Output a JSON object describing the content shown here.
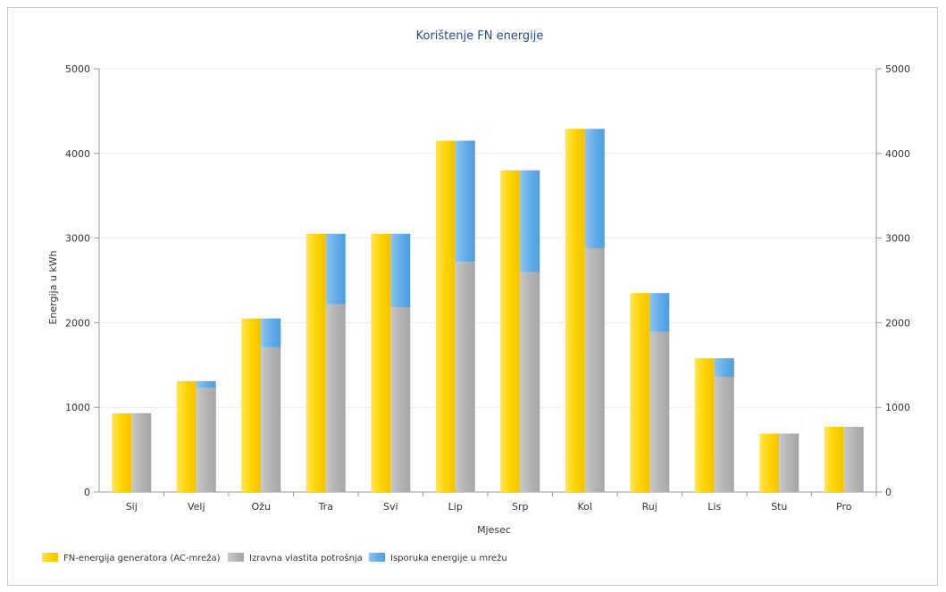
{
  "chart_data": {
    "type": "bar",
    "title": "Korištenje FN energije",
    "xlabel": "Mjesec",
    "ylabel": "Energija u kWh",
    "ylim": [
      0,
      5000
    ],
    "yticks": [
      "0",
      "1000",
      "2000",
      "3000",
      "4000",
      "5000"
    ],
    "grid": true,
    "legend_position": "bottom-left",
    "categories": [
      "Sij",
      "Velj",
      "Ožu",
      "Tra",
      "Svi",
      "Lip",
      "Srp",
      "Kol",
      "Ruj",
      "Lis",
      "Stu",
      "Pro"
    ],
    "series": [
      {
        "name": "FN-energija generatora (AC-mreža)",
        "color": "#ffd200",
        "values": [
          930,
          1310,
          2050,
          3050,
          3050,
          4150,
          3800,
          4290,
          2350,
          1580,
          690,
          770
        ]
      },
      {
        "name": "Izravna vlastita potrošnja",
        "color": "#b0b0b0",
        "stack": "right",
        "values": [
          920,
          1230,
          1710,
          2220,
          2180,
          2720,
          2600,
          2880,
          1890,
          1360,
          690,
          770
        ]
      },
      {
        "name": "Isporuka energije u mrežu",
        "color": "#5fa8e6",
        "stack": "right",
        "values": [
          10,
          80,
          340,
          830,
          870,
          1430,
          1200,
          1410,
          460,
          220,
          0,
          0
        ]
      }
    ]
  }
}
